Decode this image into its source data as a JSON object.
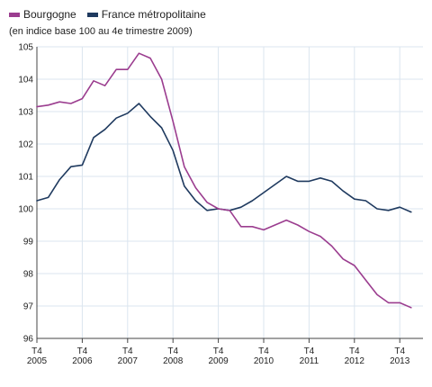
{
  "colors": {
    "bourgogne": "#9b3d8f",
    "france": "#1f3a5f",
    "grid": "#dbe5ef",
    "axis": "#444444"
  },
  "chart_data": {
    "type": "line",
    "title": "",
    "subtitle": "(en indice base 100 au 4e trimestre 2009)",
    "xlabel": "",
    "ylabel": "",
    "ylim": [
      96,
      105
    ],
    "y_ticks": [
      "96",
      "97",
      "98",
      "99",
      "100",
      "101",
      "102",
      "103",
      "104",
      "105"
    ],
    "x_ticks": [
      {
        "q": "T4",
        "year": "2005"
      },
      {
        "q": "T4",
        "year": "2006"
      },
      {
        "q": "T4",
        "year": "2007"
      },
      {
        "q": "T4",
        "year": "2008"
      },
      {
        "q": "T4",
        "year": "2009"
      },
      {
        "q": "T4",
        "year": "2010"
      },
      {
        "q": "T4",
        "year": "2011"
      },
      {
        "q": "T4",
        "year": "2012"
      },
      {
        "q": "T4",
        "year": "2013"
      }
    ],
    "grid": true,
    "legend_position": "top-left",
    "series": [
      {
        "name": "Bourgogne",
        "values": [
          103.15,
          103.2,
          103.3,
          103.25,
          103.4,
          103.95,
          103.8,
          104.3,
          104.3,
          104.8,
          104.65,
          104.0,
          102.7,
          101.3,
          100.65,
          100.2,
          100.0,
          99.95,
          99.45,
          99.45,
          99.35,
          99.5,
          99.65,
          99.5,
          99.3,
          99.15,
          98.85,
          98.45,
          98.25,
          97.8,
          97.35,
          97.1,
          97.1,
          96.95
        ]
      },
      {
        "name": "France métropolitaine",
        "values": [
          100.25,
          100.35,
          100.9,
          101.3,
          101.35,
          102.2,
          102.45,
          102.8,
          102.95,
          103.25,
          102.85,
          102.5,
          101.8,
          100.7,
          100.25,
          99.95,
          100.0,
          99.95,
          100.05,
          100.25,
          100.5,
          100.75,
          101.0,
          100.85,
          100.85,
          100.95,
          100.85,
          100.55,
          100.3,
          100.25,
          100.0,
          99.95,
          100.05,
          99.9
        ]
      }
    ]
  }
}
